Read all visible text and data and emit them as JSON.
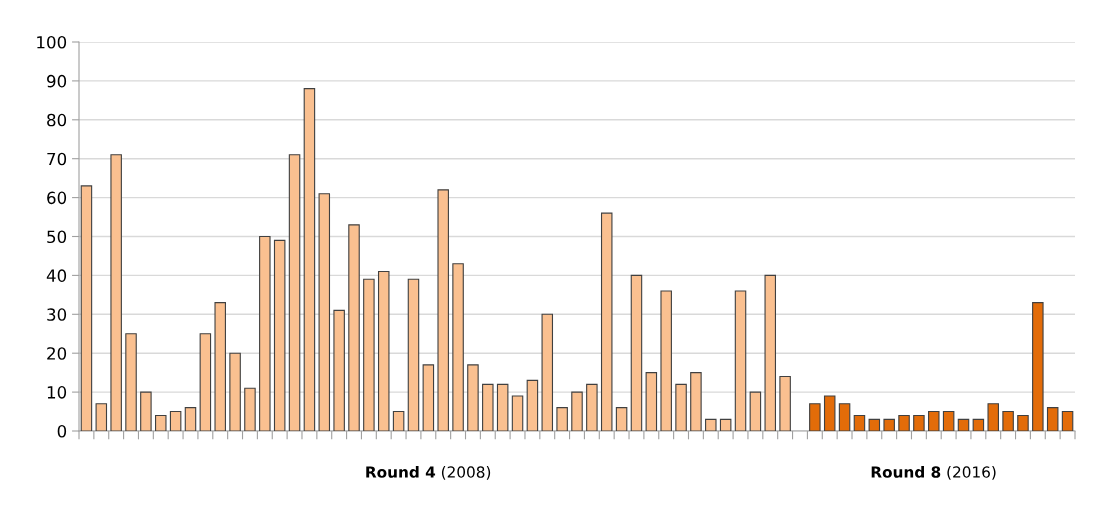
{
  "chart_data": {
    "type": "bar",
    "categories": [
      null,
      null,
      null,
      null,
      null,
      null,
      null,
      null,
      null,
      null,
      null,
      null,
      null,
      null,
      null,
      null,
      null,
      null,
      null,
      null,
      null,
      null,
      null,
      null,
      null,
      null,
      null,
      null,
      null,
      null,
      null,
      null,
      null,
      null,
      null,
      null,
      null,
      null,
      null,
      null,
      null,
      null,
      null,
      null,
      null,
      null,
      null,
      null,
      null,
      null,
      null,
      null,
      null,
      null,
      null,
      null,
      null,
      null,
      null,
      null,
      null,
      null,
      null,
      null,
      null,
      null,
      null
    ],
    "series": [
      {
        "name": "Round 4 (2008)",
        "color": "#fac090",
        "values": [
          63,
          7,
          71,
          25,
          10,
          4,
          5,
          6,
          25,
          33,
          20,
          11,
          50,
          49,
          71,
          88,
          61,
          31,
          53,
          39,
          41,
          5,
          39,
          17,
          62,
          43,
          17,
          12,
          12,
          9,
          13,
          30,
          6,
          10,
          12,
          56,
          6,
          40,
          15,
          36,
          12,
          15,
          3,
          3,
          36,
          10,
          40,
          14,
          null,
          null,
          null,
          null,
          null,
          null,
          null,
          null,
          null,
          null,
          null,
          null,
          null,
          null,
          null,
          null,
          null,
          null,
          null
        ]
      },
      {
        "name": "Round 8 (2016)",
        "color": "#e36c09",
        "values": [
          null,
          null,
          null,
          null,
          null,
          null,
          null,
          null,
          null,
          null,
          null,
          null,
          null,
          null,
          null,
          null,
          null,
          null,
          null,
          null,
          null,
          null,
          null,
          null,
          null,
          null,
          null,
          null,
          null,
          null,
          null,
          null,
          null,
          null,
          null,
          null,
          null,
          null,
          null,
          null,
          null,
          null,
          null,
          null,
          null,
          null,
          null,
          null,
          null,
          7,
          9,
          7,
          4,
          3,
          3,
          4,
          4,
          5,
          5,
          3,
          3,
          7,
          5,
          4,
          33,
          6,
          5
        ]
      }
    ],
    "ylim": [
      0,
      100
    ],
    "yticks": [
      0,
      10,
      20,
      30,
      40,
      50,
      60,
      70,
      80,
      90,
      100
    ],
    "grid": "y"
  }
}
